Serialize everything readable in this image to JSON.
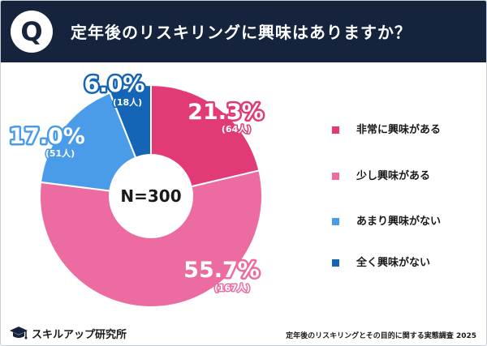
{
  "header": {
    "q_letter": "Q",
    "title": "定年後のリスキリングに興味はありますか？"
  },
  "chart_data": {
    "type": "pie",
    "title": "定年後のリスキリングに興味はありますか？",
    "center_label": "N=300",
    "slices": [
      {
        "label": "非常に興味がある",
        "value": 21.3,
        "value_label": "21.3%",
        "count_label": "(64人)",
        "color": "#e23a76"
      },
      {
        "label": "少し興味がある",
        "value": 55.7,
        "value_label": "55.7%",
        "count_label": "(167人)",
        "color": "#ec6ca2"
      },
      {
        "label": "あまり興味がない",
        "value": 17.0,
        "value_label": "17.0%",
        "count_label": "(51人)",
        "color": "#4a9ce8"
      },
      {
        "label": "全く興味がない",
        "value": 6.0,
        "value_label": "6.0%",
        "count_label": "(18人)",
        "color": "#1465b5"
      }
    ],
    "legend_position": "right"
  },
  "footer": {
    "logo_text": "スキルアップ研究所",
    "source": "定年後のリスキリングとその目的に関する実態調査 2025"
  },
  "icons": {
    "header_badge": "q-badge-icon",
    "logo": "graduation-cap-icon"
  },
  "colors": {
    "header_bg": "#15233d"
  }
}
